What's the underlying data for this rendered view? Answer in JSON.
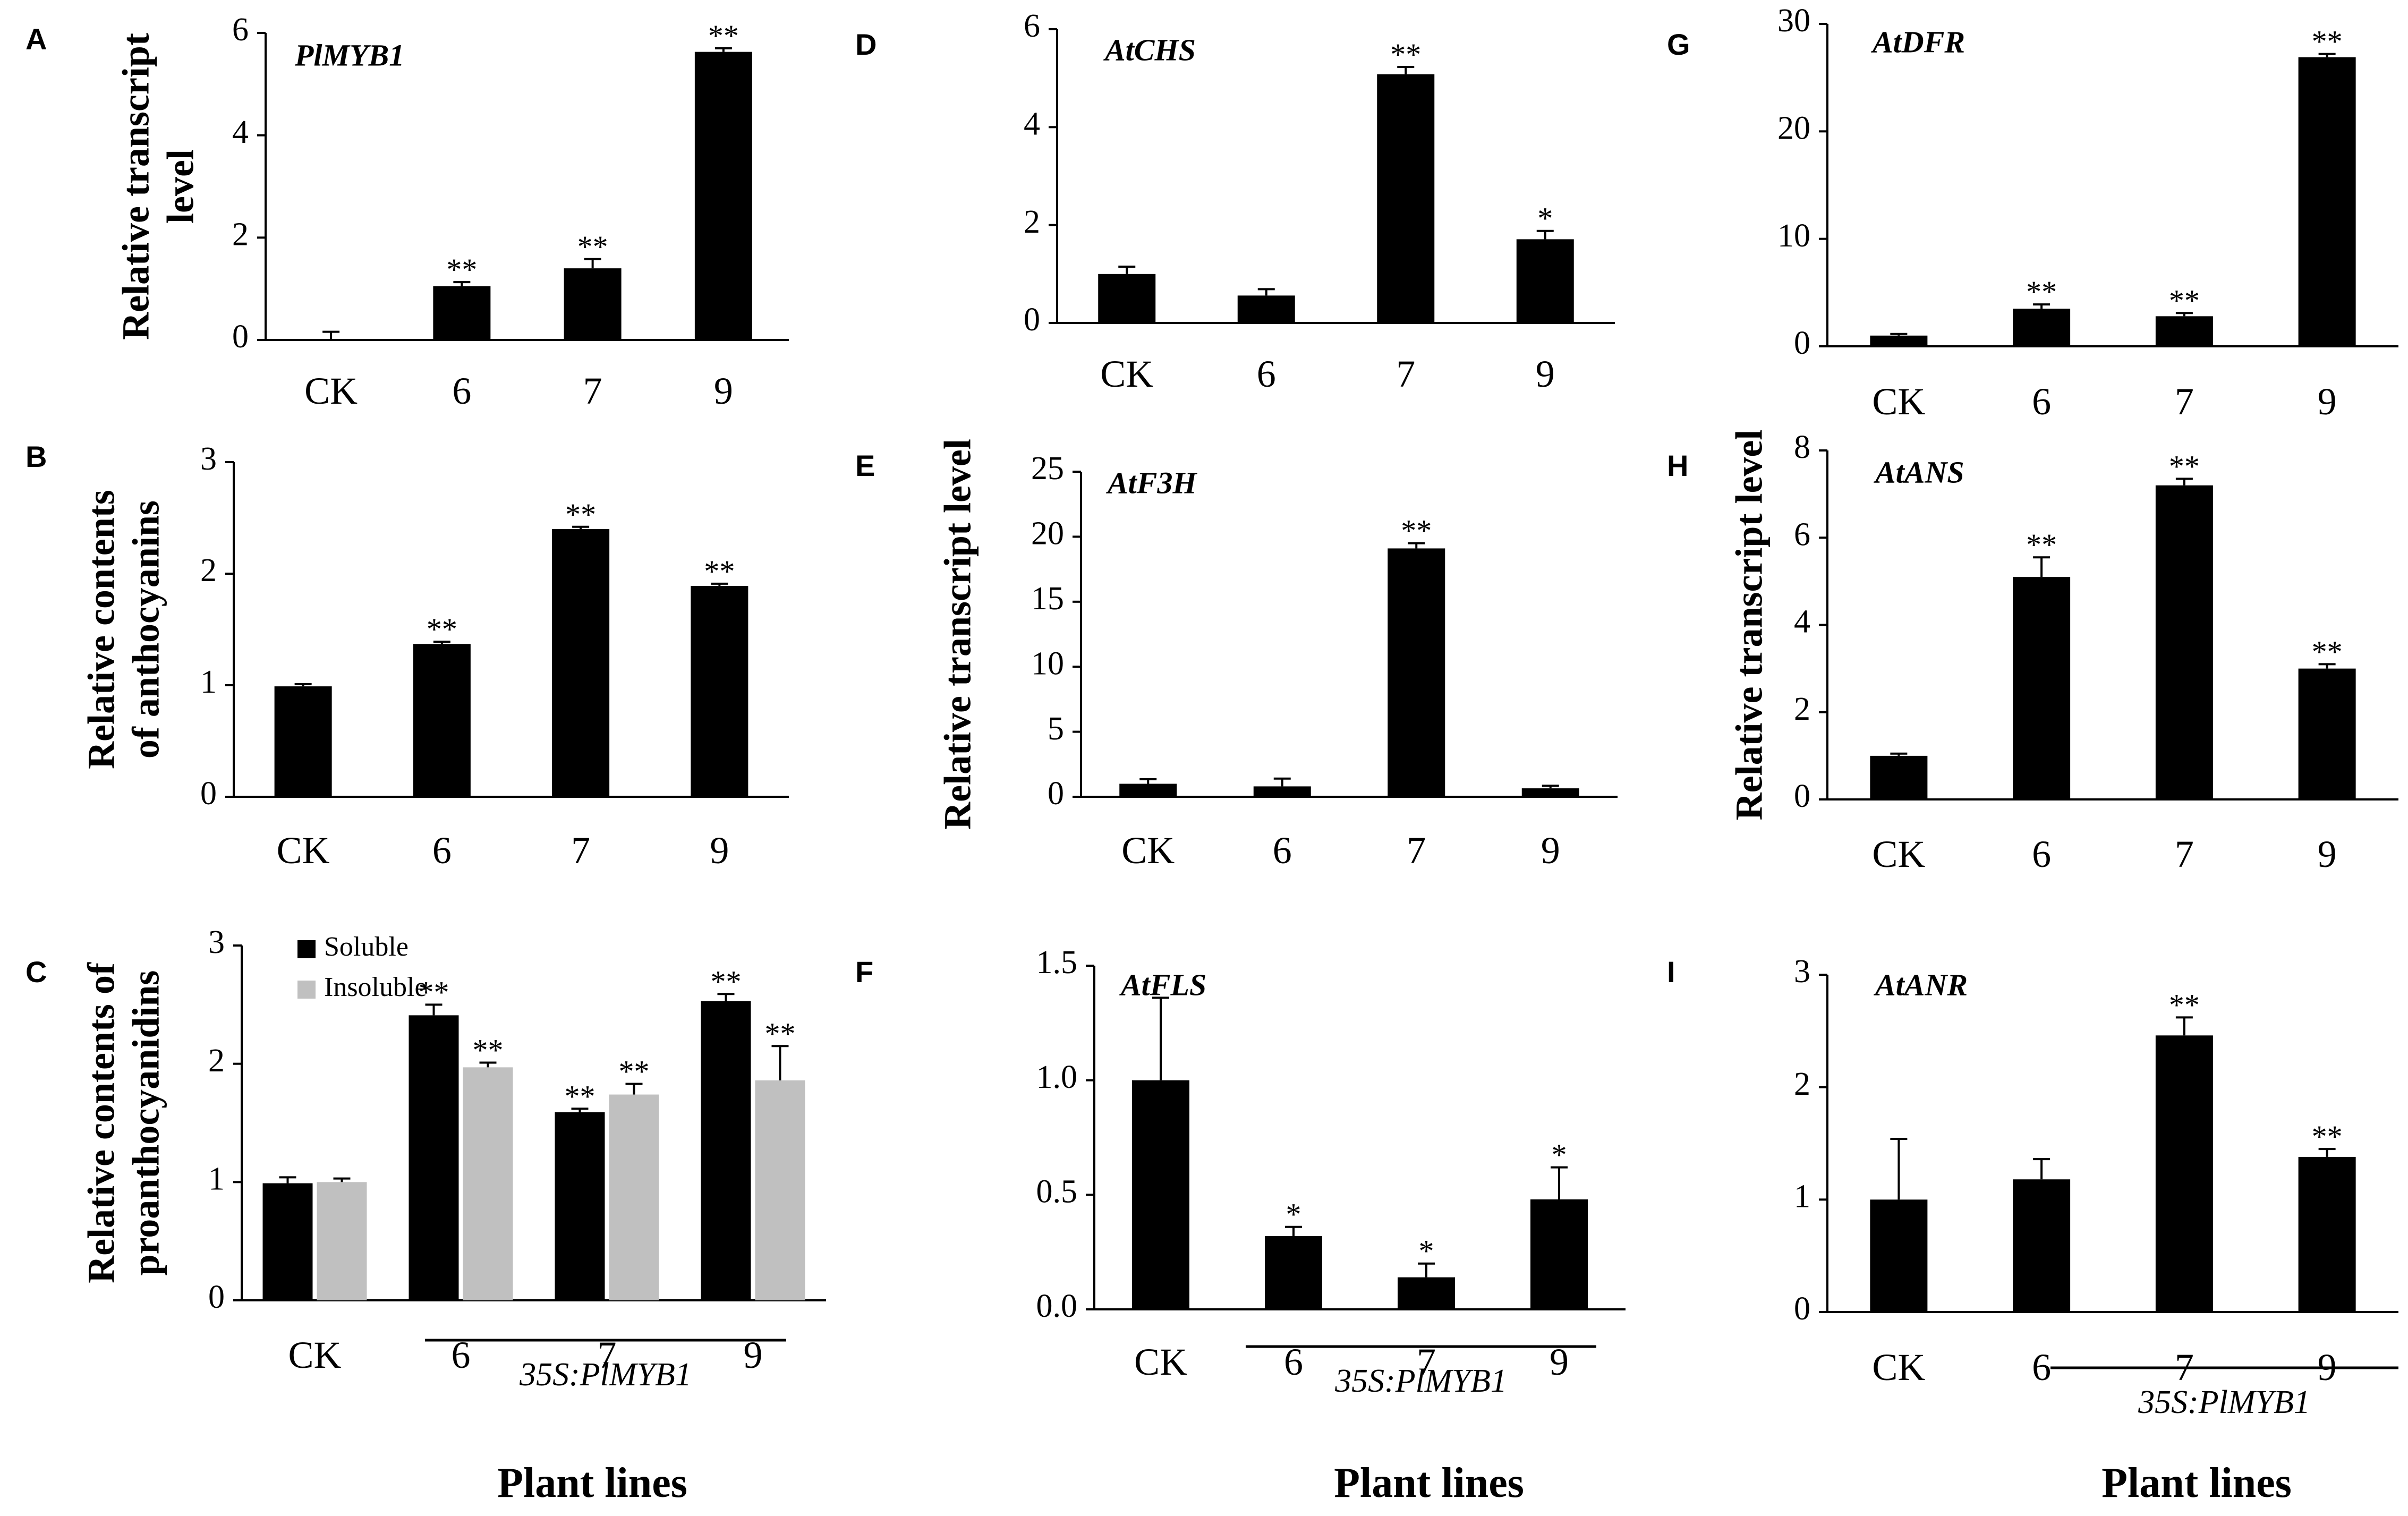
{
  "figure": {
    "xaxis_title": "Plant lines",
    "genotype_label": "35S:PlMYB1",
    "colors": {
      "bar": "#000000",
      "bar_secondary": "#c0c0c0",
      "axis": "#000000"
    }
  },
  "chart_data": [
    {
      "id": "A",
      "panel_label": "A",
      "type": "bar",
      "gene_label": "PlMYB1",
      "ylabel_lines": [
        "Relative transcript",
        "level"
      ],
      "categories": [
        "CK",
        "6",
        "7",
        "9"
      ],
      "ylim": [
        0,
        6
      ],
      "ytick_labels": [
        "0",
        "2",
        "4",
        "6"
      ],
      "series": [
        {
          "name": "",
          "values": [
            0.02,
            1.05,
            1.4,
            5.63
          ],
          "errors": [
            0.14,
            0.08,
            0.18,
            0.07
          ],
          "significance": [
            "",
            "**",
            "**",
            "**"
          ]
        }
      ]
    },
    {
      "id": "B",
      "panel_label": "B",
      "type": "bar",
      "gene_label": "",
      "ylabel_lines": [
        "Relative contents",
        "of anthocyanins"
      ],
      "categories": [
        "CK",
        "6",
        "7",
        "9"
      ],
      "ylim": [
        0,
        3
      ],
      "ytick_labels": [
        "0",
        "1",
        "2",
        "3"
      ],
      "series": [
        {
          "name": "",
          "values": [
            0.99,
            1.37,
            2.4,
            1.89
          ],
          "errors": [
            0.02,
            0.02,
            0.02,
            0.02
          ],
          "significance": [
            "",
            "**",
            "**",
            "**"
          ]
        }
      ]
    },
    {
      "id": "C",
      "panel_label": "C",
      "type": "bar",
      "gene_label": "",
      "ylabel_lines": [
        "Relative contents of",
        "proanthocyanidins"
      ],
      "categories": [
        "CK",
        "6",
        "7",
        "9"
      ],
      "ylim": [
        0,
        3
      ],
      "ytick_labels": [
        "0",
        "1",
        "2",
        "3"
      ],
      "legend_entries": [
        "Soluble",
        "Insoluble"
      ],
      "series": [
        {
          "name": "Soluble",
          "values": [
            0.99,
            2.41,
            1.59,
            2.53
          ],
          "errors": [
            0.05,
            0.09,
            0.03,
            0.06
          ],
          "significance": [
            "",
            "**",
            "**",
            "**"
          ]
        },
        {
          "name": "Insoluble",
          "values": [
            1.0,
            1.97,
            1.74,
            1.86
          ],
          "errors": [
            0.03,
            0.04,
            0.09,
            0.29
          ],
          "significance": [
            "",
            "**",
            "**",
            "**"
          ]
        }
      ]
    },
    {
      "id": "D",
      "panel_label": "D",
      "type": "bar",
      "gene_label": "AtCHS",
      "ylabel_lines": [],
      "categories": [
        "CK",
        "6",
        "7",
        "9"
      ],
      "ylim": [
        0,
        6
      ],
      "ytick_labels": [
        "0",
        "2",
        "4",
        "6"
      ],
      "series": [
        {
          "name": "",
          "values": [
            1.0,
            0.56,
            5.08,
            1.71
          ],
          "errors": [
            0.15,
            0.13,
            0.15,
            0.17
          ],
          "significance": [
            "",
            "",
            "**",
            "*"
          ]
        }
      ]
    },
    {
      "id": "E",
      "panel_label": "E",
      "type": "bar",
      "gene_label": "AtF3H",
      "ylabel_lines": [
        "Relative transcript level"
      ],
      "categories": [
        "CK",
        "6",
        "7",
        "9"
      ],
      "ylim": [
        0,
        25
      ],
      "ytick_labels": [
        "0",
        "5",
        "10",
        "15",
        "20",
        "25"
      ],
      "series": [
        {
          "name": "",
          "values": [
            1.0,
            0.8,
            19.1,
            0.65
          ],
          "errors": [
            0.35,
            0.6,
            0.4,
            0.2
          ],
          "significance": [
            "",
            "",
            "**",
            ""
          ]
        }
      ]
    },
    {
      "id": "F",
      "panel_label": "F",
      "type": "bar",
      "gene_label": "AtFLS",
      "ylabel_lines": [],
      "categories": [
        "CK",
        "6",
        "7",
        "9"
      ],
      "ylim": [
        0,
        1.5
      ],
      "ytick_labels": [
        "0.0",
        "0.5",
        "1.0",
        "1.5"
      ],
      "series": [
        {
          "name": "",
          "values": [
            1.0,
            0.32,
            0.14,
            0.48
          ],
          "errors": [
            0.36,
            0.04,
            0.06,
            0.14
          ],
          "significance": [
            "",
            "*",
            "*",
            "*"
          ]
        }
      ]
    },
    {
      "id": "G",
      "panel_label": "G",
      "type": "bar",
      "gene_label": "AtDFR",
      "ylabel_lines": [],
      "categories": [
        "CK",
        "6",
        "7",
        "9"
      ],
      "ylim": [
        0,
        30
      ],
      "ytick_labels": [
        "0",
        "10",
        "20",
        "30"
      ],
      "series": [
        {
          "name": "",
          "values": [
            1.0,
            3.5,
            2.8,
            26.9
          ],
          "errors": [
            0.15,
            0.4,
            0.3,
            0.3
          ],
          "significance": [
            "",
            "**",
            "**",
            "**"
          ]
        }
      ]
    },
    {
      "id": "H",
      "panel_label": "H",
      "type": "bar",
      "gene_label": "AtANS",
      "ylabel_lines": [
        "Relative transcript level"
      ],
      "categories": [
        "CK",
        "6",
        "7",
        "9"
      ],
      "ylim": [
        0,
        8
      ],
      "ytick_labels": [
        "0",
        "2",
        "4",
        "6",
        "8"
      ],
      "series": [
        {
          "name": "",
          "values": [
            1.0,
            5.1,
            7.2,
            3.0
          ],
          "errors": [
            0.05,
            0.45,
            0.15,
            0.1
          ],
          "significance": [
            "",
            "**",
            "**",
            "**"
          ]
        }
      ]
    },
    {
      "id": "I",
      "panel_label": "I",
      "type": "bar",
      "gene_label": "AtANR",
      "ylabel_lines": [],
      "categories": [
        "CK",
        "6",
        "7",
        "9"
      ],
      "ylim": [
        0,
        3
      ],
      "ytick_labels": [
        "0",
        "1",
        "2",
        "3"
      ],
      "series": [
        {
          "name": "",
          "values": [
            1.0,
            1.18,
            2.46,
            1.38
          ],
          "errors": [
            0.54,
            0.18,
            0.16,
            0.07
          ],
          "significance": [
            "",
            "",
            "**",
            "**"
          ]
        }
      ]
    }
  ]
}
